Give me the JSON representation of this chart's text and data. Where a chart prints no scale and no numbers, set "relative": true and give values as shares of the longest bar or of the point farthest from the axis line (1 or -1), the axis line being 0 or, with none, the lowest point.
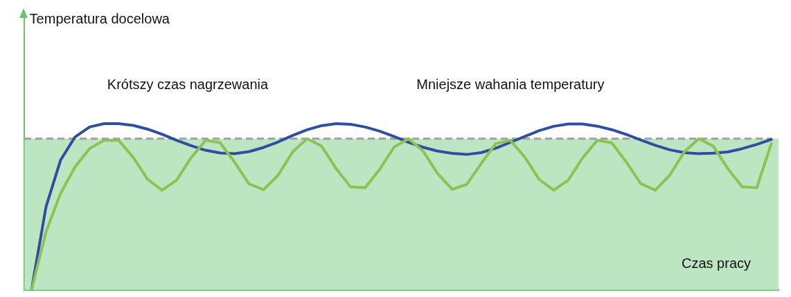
{
  "chart_data": {
    "type": "line",
    "relative": true,
    "xlabel": "Czas pracy",
    "annotations": [
      "Temperatura docelowa",
      "Krótszy czas nagrzewania",
      "Mniejsze wahania temperatury"
    ],
    "categories": [
      null,
      null,
      null,
      null,
      null,
      null,
      null,
      null,
      null,
      null,
      null,
      null,
      null,
      null,
      null,
      null,
      null,
      null,
      null,
      null,
      null,
      null,
      null,
      null,
      null,
      null,
      null,
      null,
      null,
      null,
      null,
      null,
      null,
      null,
      null,
      null,
      null,
      null,
      null,
      null,
      null,
      null,
      null,
      null,
      null,
      null,
      null,
      null,
      null,
      null,
      null,
      null
    ],
    "series": [
      {
        "color": "#8dc253",
        "values": [
          0,
          0.35,
          0.58,
          0.74,
          0.85,
          0.9,
          0.9,
          0.8,
          0.666,
          0.6,
          0.66,
          0.795,
          0.9,
          0.886,
          0.768,
          0.638,
          0.603,
          0.69,
          0.83,
          0.91,
          0.865,
          0.73,
          0.62,
          0.615,
          0.725,
          0.86,
          0.91,
          0.835,
          0.7,
          0.605,
          0.635,
          0.76,
          0.88,
          0.9,
          0.8,
          0.665,
          0.6,
          0.66,
          0.795,
          0.9,
          0.885,
          0.77,
          0.64,
          0.6,
          0.69,
          0.83,
          0.91,
          0.865,
          0.73,
          0.62,
          0.615,
          0.88
        ]
      },
      {
        "color": "#2e4fa0",
        "values": [
          0,
          0.5,
          0.78,
          0.92,
          0.98,
          1,
          1,
          0.99,
          0.967,
          0.936,
          0.9,
          0.868,
          0.84,
          0.824,
          0.82,
          0.832,
          0.857,
          0.89,
          0.929,
          0.963,
          0.988,
          1,
          0.996,
          0.98,
          0.955,
          0.923,
          0.888,
          0.858,
          0.835,
          0.822,
          0.815,
          0.826,
          0.852,
          0.887,
          0.923,
          0.958,
          0.984,
          0.998,
          0.998,
          0.985,
          0.964,
          0.935,
          0.902,
          0.87,
          0.843,
          0.826,
          0.82,
          0.823,
          0.83,
          0.85,
          0.875,
          0.905
        ]
      }
    ],
    "ref_lines": [
      {
        "axis": "y",
        "value": 0.91,
        "color": "#a0a0a0",
        "line_style": "dashed"
      }
    ],
    "bands": [
      {
        "axis": "y",
        "from": 0,
        "to": 0.91,
        "color": "#a6dcae"
      }
    ],
    "grid": false,
    "legend": false,
    "marker": "none",
    "line_style": "solid"
  }
}
